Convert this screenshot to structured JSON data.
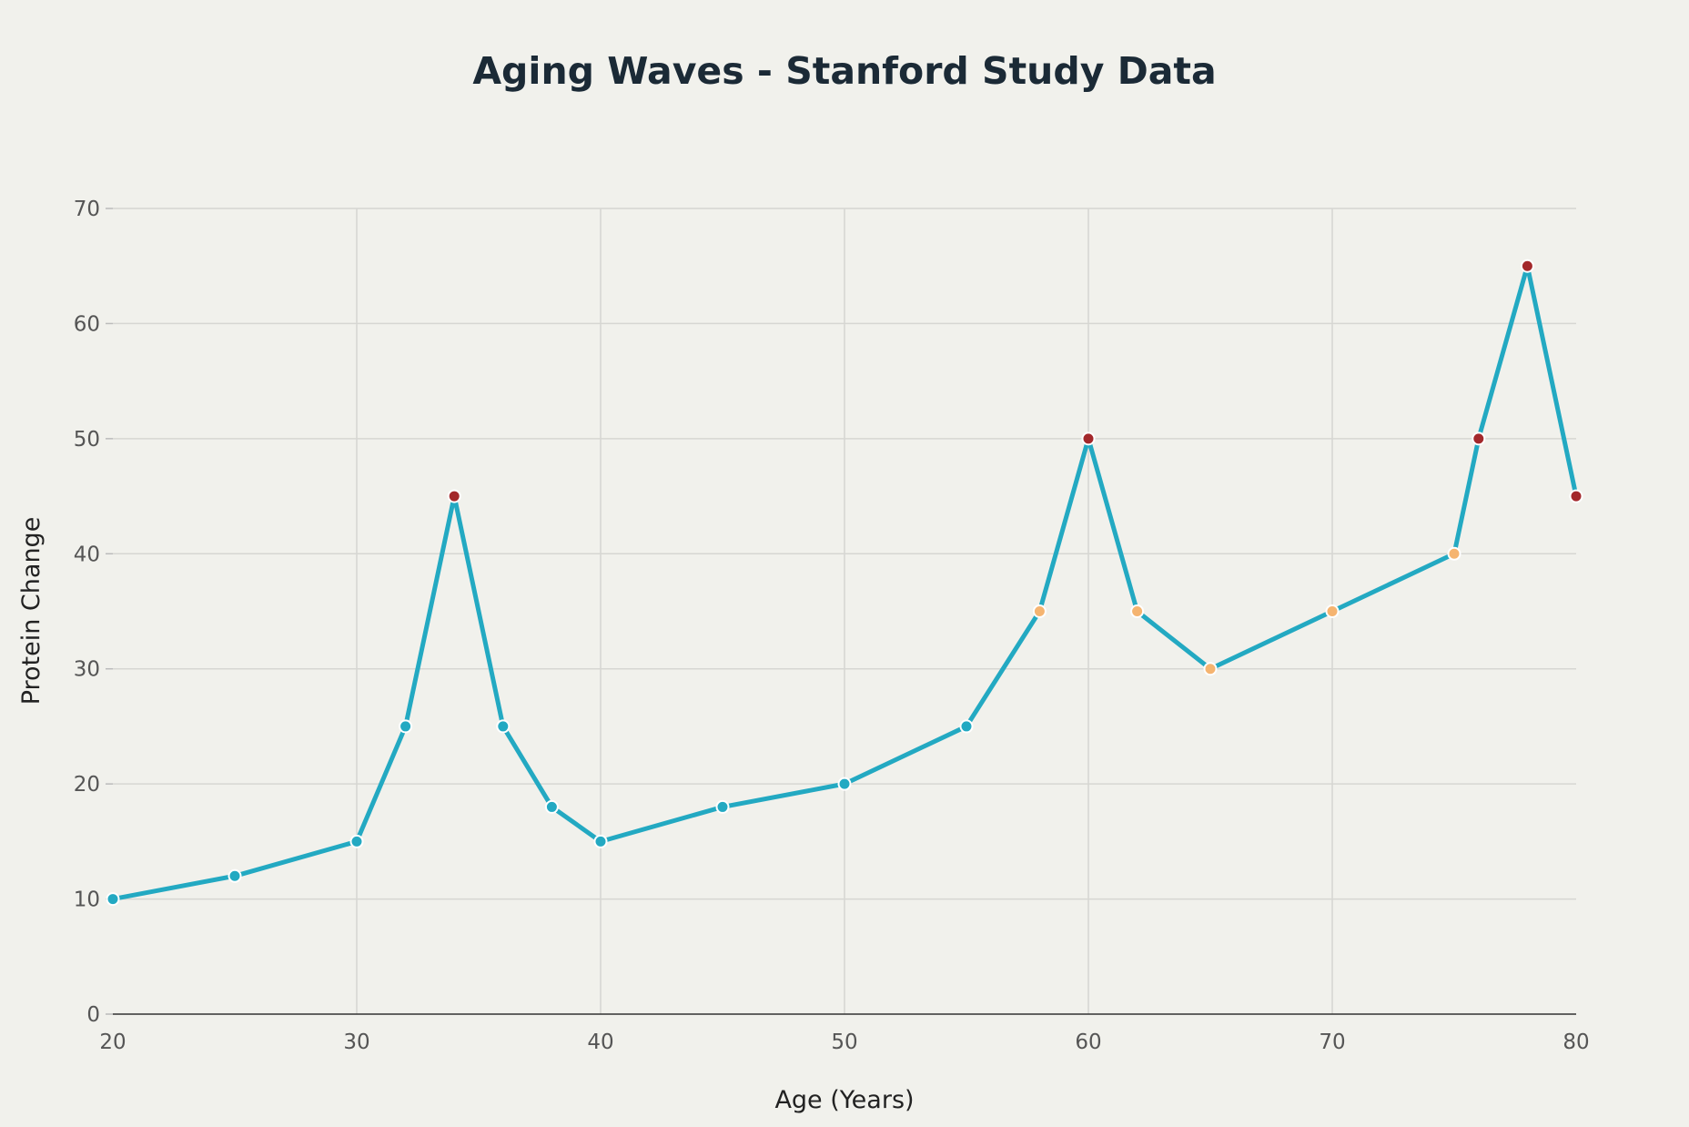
{
  "chart_data": {
    "type": "line",
    "title": "Aging Waves - Stanford Study Data",
    "xlabel": "Age (Years)",
    "ylabel": "Protein Change",
    "xlim": [
      20,
      80
    ],
    "ylim": [
      0,
      70
    ],
    "xticks": [
      20,
      30,
      40,
      50,
      60,
      70,
      80
    ],
    "yticks": [
      0,
      10,
      20,
      30,
      40,
      50,
      60,
      70
    ],
    "grid": true,
    "colors": {
      "line": "#23a9c2",
      "low": "#23a9c2",
      "medium": "#f5b470",
      "high": "#a3282b",
      "axis": "#333333",
      "grid": "#d6d6d2",
      "background": "#f1f1ec"
    },
    "series": [
      {
        "x": [
          20,
          25,
          30,
          32,
          34,
          36,
          38,
          40,
          45,
          50,
          55,
          58,
          60,
          62,
          65,
          70,
          75,
          76,
          78,
          80
        ],
        "y": [
          10,
          12,
          15,
          25,
          45,
          25,
          18,
          15,
          18,
          20,
          25,
          35,
          50,
          35,
          30,
          35,
          40,
          50,
          65,
          45
        ],
        "point_level": [
          "low",
          "low",
          "low",
          "low",
          "high",
          "low",
          "low",
          "low",
          "low",
          "low",
          "low",
          "medium",
          "high",
          "medium",
          "medium",
          "medium",
          "medium",
          "high",
          "high",
          "high"
        ]
      }
    ]
  }
}
